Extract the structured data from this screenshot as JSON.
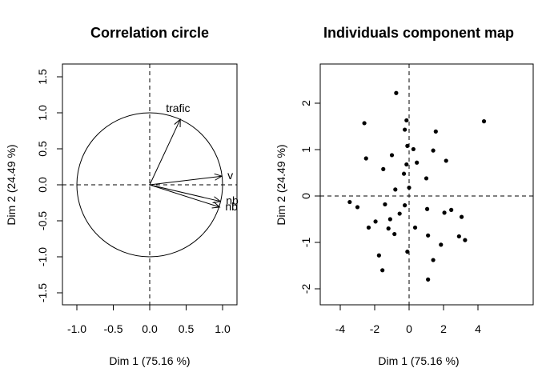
{
  "chart_data": [
    {
      "type": "scatter",
      "title": "Correlation circle",
      "xlabel": "Dim 1 (75.16 %)",
      "ylabel": "Dim 2 (24.49 %)",
      "xlim": [
        -1.0,
        1.0
      ],
      "ylim": [
        -1.5,
        1.5
      ],
      "xticks": [
        "-1.0",
        "-0.5",
        "0.0",
        "0.5",
        "1.0"
      ],
      "yticks": [
        "-1.5",
        "-1.0",
        "-0.5",
        "0.0",
        "0.5",
        "1.0",
        "1.5"
      ],
      "unit_circle": true,
      "reference_lines": "dashed at 0",
      "arrows": [
        {
          "label": "trafic",
          "x": 0.42,
          "y": 0.91
        },
        {
          "label": "v",
          "x": 0.99,
          "y": 0.12
        },
        {
          "label": "nb",
          "x": 0.97,
          "y": -0.23
        },
        {
          "label": "nb",
          "x": 0.96,
          "y": -0.31
        }
      ]
    },
    {
      "type": "scatter",
      "title": "Individuals component map",
      "xlabel": "Dim 1 (75.16 %)",
      "ylabel": "Dim 2 (24.49 %)",
      "xlim": [
        -4.0,
        4.0
      ],
      "ylim": [
        -2.0,
        2.0
      ],
      "xticks": [
        "-4",
        "-2",
        "0",
        "2",
        "4"
      ],
      "yticks": [
        "-2",
        "-1",
        "0",
        "1",
        "2"
      ],
      "reference_lines": "dashed at 0",
      "points": [
        [
          4.35,
          1.61
        ],
        [
          -0.75,
          2.22
        ],
        [
          -2.6,
          1.57
        ],
        [
          -0.15,
          1.63
        ],
        [
          -0.25,
          1.43
        ],
        [
          1.55,
          1.39
        ],
        [
          -0.1,
          1.08
        ],
        [
          0.25,
          1.01
        ],
        [
          1.4,
          0.98
        ],
        [
          -1.0,
          0.88
        ],
        [
          -2.5,
          0.81
        ],
        [
          2.15,
          0.76
        ],
        [
          0.45,
          0.72
        ],
        [
          -0.15,
          0.68
        ],
        [
          -1.5,
          0.58
        ],
        [
          -0.3,
          0.48
        ],
        [
          1.0,
          0.38
        ],
        [
          -0.8,
          0.14
        ],
        [
          0.0,
          0.18
        ],
        [
          -3.45,
          -0.13
        ],
        [
          -3.0,
          -0.24
        ],
        [
          -1.4,
          -0.18
        ],
        [
          -0.25,
          -0.2
        ],
        [
          1.05,
          -0.28
        ],
        [
          2.45,
          -0.3
        ],
        [
          2.05,
          -0.36
        ],
        [
          -0.55,
          -0.38
        ],
        [
          -1.1,
          -0.5
        ],
        [
          3.05,
          -0.45
        ],
        [
          -1.95,
          -0.55
        ],
        [
          -2.35,
          -0.68
        ],
        [
          -1.2,
          -0.7
        ],
        [
          0.35,
          -0.68
        ],
        [
          -0.85,
          -0.82
        ],
        [
          1.1,
          -0.85
        ],
        [
          2.9,
          -0.87
        ],
        [
          3.25,
          -0.95
        ],
        [
          1.85,
          -1.05
        ],
        [
          -0.1,
          -1.2
        ],
        [
          -1.75,
          -1.28
        ],
        [
          1.4,
          -1.38
        ],
        [
          -1.55,
          -1.6
        ],
        [
          1.1,
          -1.8
        ]
      ]
    }
  ]
}
